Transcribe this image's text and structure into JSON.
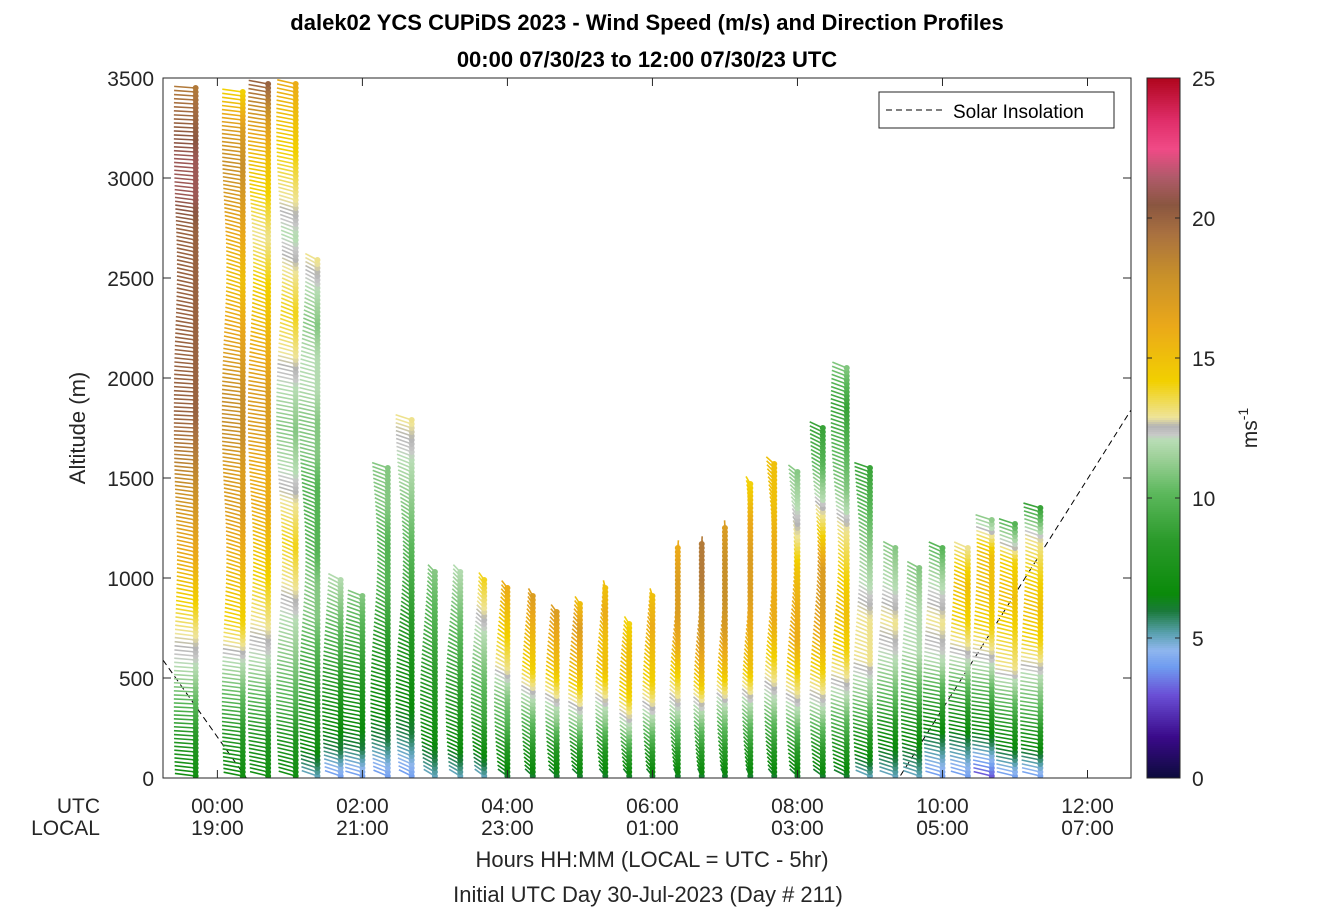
{
  "chart_data": {
    "type": "scatter",
    "title": "dalek02 YCS CUPiDS 2023 - Wind Speed (m/s) and Direction Profiles",
    "subtitle": "00:00 07/30/23 to 12:00 07/30/23  UTC",
    "ylabel": "Altitude (m)",
    "xlabel": "Hours HH:MM  (LOCAL = UTC - 5hr)",
    "xlabel2": "Initial UTC Day 30-Jul-2023 (Day # 211)",
    "ylim": [
      0,
      3500
    ],
    "yticks": [
      0,
      500,
      1000,
      1500,
      2000,
      2500,
      3000,
      3500
    ],
    "xlim_hours": [
      -0.75,
      12.6
    ],
    "xticks_hours": [
      0,
      2,
      4,
      6,
      8,
      10,
      12
    ],
    "xrow_labels": [
      "UTC",
      "LOCAL"
    ],
    "xtick_utc": [
      "00:00",
      "02:00",
      "04:00",
      "06:00",
      "08:00",
      "10:00",
      "12:00"
    ],
    "xtick_local": [
      "19:00",
      "21:00",
      "23:00",
      "01:00",
      "03:00",
      "05:00",
      "07:00"
    ],
    "colorbar": {
      "label": "ms",
      "label_sup": "-1",
      "range": [
        0,
        25
      ],
      "ticks": [
        0,
        5,
        10,
        15,
        20,
        25
      ],
      "stops": [
        [
          0,
          "#0b0b3a"
        ],
        [
          1.5,
          "#3a0a8a"
        ],
        [
          3,
          "#6a4fd6"
        ],
        [
          4,
          "#6f9cf0"
        ],
        [
          4.6,
          "#8fb6ee"
        ],
        [
          5.2,
          "#5aa1b0"
        ],
        [
          6,
          "#1a7a3a"
        ],
        [
          6.6,
          "#0a8a0a"
        ],
        [
          8.5,
          "#2a9a2a"
        ],
        [
          10.2,
          "#5cb85c"
        ],
        [
          11.5,
          "#9fd19a"
        ],
        [
          12.1,
          "#b8ddb5"
        ],
        [
          12.3,
          "#c8c8c8"
        ],
        [
          12.6,
          "#b4b4b4"
        ],
        [
          12.9,
          "#eee49a"
        ],
        [
          14.2,
          "#f2d000"
        ],
        [
          16.2,
          "#eaa81a"
        ],
        [
          18,
          "#c8902a"
        ],
        [
          19.5,
          "#a87040"
        ],
        [
          20.5,
          "#8a5640"
        ],
        [
          21.5,
          "#b05a6a"
        ],
        [
          22.5,
          "#f04a86"
        ],
        [
          23.5,
          "#e02e6a"
        ],
        [
          25,
          "#b0061e"
        ]
      ]
    },
    "legend": {
      "label": "Solar Insolation",
      "placement": "top-right",
      "style": "dashed"
    },
    "solar_insolation_line": {
      "x_hours": [
        -0.75,
        0.4,
        9.4,
        12.6
      ],
      "y": [
        590,
        0,
        0,
        1840
      ]
    },
    "profiles": [
      {
        "t": -0.3,
        "base": 0,
        "top": 3460,
        "speeds": [
          7,
          8,
          10,
          12,
          13,
          14.5,
          16,
          17,
          18,
          19,
          20,
          20,
          20,
          20,
          20,
          20,
          21,
          21,
          20,
          19
        ],
        "dir": 250
      },
      {
        "t": 0.35,
        "base": 0,
        "top": 3440,
        "speeds": [
          7,
          8,
          10,
          12,
          14,
          15,
          16,
          17,
          17,
          18,
          18,
          17,
          16,
          15,
          16,
          17,
          18,
          17,
          14
        ],
        "dir": 240
      },
      {
        "t": 0.7,
        "base": 0,
        "top": 3470,
        "speeds": [
          7,
          8,
          10,
          12,
          13,
          14,
          15,
          16,
          16,
          17,
          17,
          16,
          15,
          14,
          13,
          14,
          15,
          17,
          20
        ],
        "dir": 235
      },
      {
        "t": 1.08,
        "base": 0,
        "top": 3480,
        "speeds": [
          7,
          8,
          10,
          11,
          12,
          13,
          14,
          13,
          12,
          11,
          12,
          13,
          14,
          13,
          12,
          13,
          14,
          15,
          16
        ],
        "dir": 230
      },
      {
        "t": 1.38,
        "base": 0,
        "top": 2590,
        "speeds": [
          5,
          7,
          8,
          9,
          10,
          11,
          11,
          10,
          10,
          10,
          11,
          11,
          12,
          12,
          11,
          12,
          13
        ],
        "dir": 225
      },
      {
        "t": 1.7,
        "base": 0,
        "top": 1000,
        "speeds": [
          4,
          6,
          7,
          8,
          9,
          10,
          11,
          12
        ],
        "dir": 225
      },
      {
        "t": 2.0,
        "base": 0,
        "top": 920,
        "speeds": [
          4,
          6,
          7,
          8,
          9,
          10,
          11
        ],
        "dir": 230
      },
      {
        "t": 2.35,
        "base": 0,
        "top": 1560,
        "speeds": [
          4,
          6,
          7,
          8,
          9,
          10,
          10,
          11,
          11
        ],
        "dir": 220
      },
      {
        "t": 2.68,
        "base": 0,
        "top": 1790,
        "speeds": [
          4,
          6,
          7,
          8,
          9,
          10,
          11,
          12,
          13
        ],
        "dir": 215
      },
      {
        "t": 3.0,
        "base": 0,
        "top": 1030,
        "speeds": [
          5,
          7,
          8,
          9,
          10,
          11
        ],
        "dir": 210
      },
      {
        "t": 3.35,
        "base": 0,
        "top": 1040,
        "speeds": [
          5,
          7,
          8,
          9,
          10,
          11,
          12
        ],
        "dir": 210
      },
      {
        "t": 3.68,
        "base": 0,
        "top": 1000,
        "speeds": [
          5,
          7,
          9,
          10,
          11,
          12,
          13,
          14
        ],
        "dir": 205
      },
      {
        "t": 4.0,
        "base": 0,
        "top": 950,
        "speeds": [
          6,
          8,
          10,
          11,
          13,
          14,
          15,
          16
        ],
        "dir": 205
      },
      {
        "t": 4.35,
        "base": 0,
        "top": 920,
        "speeds": [
          6,
          8,
          10,
          12,
          14,
          15,
          16,
          17
        ],
        "dir": 200
      },
      {
        "t": 4.68,
        "base": 0,
        "top": 830,
        "speeds": [
          6,
          8,
          11,
          13,
          15,
          16,
          17
        ],
        "dir": 200
      },
      {
        "t": 5.0,
        "base": 0,
        "top": 880,
        "speeds": [
          6,
          8,
          11,
          13,
          15,
          16,
          17,
          15
        ],
        "dir": 200
      },
      {
        "t": 5.35,
        "base": 0,
        "top": 960,
        "speeds": [
          6,
          8,
          11,
          13,
          15,
          15,
          16,
          15
        ],
        "dir": 195
      },
      {
        "t": 5.68,
        "base": 0,
        "top": 780,
        "speeds": [
          6,
          9,
          12,
          14,
          15,
          15,
          14
        ],
        "dir": 195
      },
      {
        "t": 6.0,
        "base": 0,
        "top": 920,
        "speeds": [
          6,
          9,
          12,
          14,
          15,
          16,
          15
        ],
        "dir": 195
      },
      {
        "t": 6.35,
        "base": 0,
        "top": 1160,
        "speeds": [
          6,
          9,
          12,
          14,
          16,
          17,
          17,
          16
        ],
        "dir": 190
      },
      {
        "t": 6.68,
        "base": 0,
        "top": 1170,
        "speeds": [
          6,
          9,
          12,
          15,
          17,
          18,
          19,
          19
        ],
        "dir": 190
      },
      {
        "t": 7.0,
        "base": 0,
        "top": 1260,
        "speeds": [
          6,
          9,
          12,
          15,
          17,
          18,
          18,
          17
        ],
        "dir": 190
      },
      {
        "t": 7.35,
        "base": 0,
        "top": 1480,
        "speeds": [
          6,
          9,
          12,
          15,
          16,
          17,
          17,
          16,
          14
        ],
        "dir": 190
      },
      {
        "t": 7.68,
        "base": 0,
        "top": 1570,
        "speeds": [
          6,
          9,
          12,
          14,
          16,
          16,
          16,
          15,
          15
        ],
        "dir": 195
      },
      {
        "t": 8.0,
        "base": 0,
        "top": 1540,
        "speeds": [
          6,
          9,
          12,
          14,
          16,
          16,
          15,
          13,
          12,
          11
        ],
        "dir": 200
      },
      {
        "t": 8.35,
        "base": 0,
        "top": 1750,
        "speeds": [
          6,
          9,
          12,
          14,
          16,
          17,
          17,
          14,
          12,
          10,
          9
        ],
        "dir": 205
      },
      {
        "t": 8.68,
        "base": 0,
        "top": 2060,
        "speeds": [
          6,
          9,
          12,
          14,
          15,
          14,
          13,
          11,
          10,
          9,
          11
        ],
        "dir": 215
      },
      {
        "t": 9.0,
        "base": 0,
        "top": 1560,
        "speeds": [
          5,
          8,
          11,
          13,
          13,
          12,
          11,
          10,
          9
        ],
        "dir": 220
      },
      {
        "t": 9.35,
        "base": 0,
        "top": 1160,
        "speeds": [
          5,
          7,
          10,
          12,
          13,
          12,
          11
        ],
        "dir": 225
      },
      {
        "t": 9.68,
        "base": 0,
        "top": 1050,
        "speeds": [
          5,
          7,
          10,
          12,
          12,
          11
        ],
        "dir": 225
      },
      {
        "t": 10.0,
        "base": 0,
        "top": 1160,
        "speeds": [
          4,
          6,
          9,
          12,
          13,
          12,
          10
        ],
        "dir": 230
      },
      {
        "t": 10.35,
        "base": 0,
        "top": 1150,
        "speeds": [
          4,
          6,
          9,
          12,
          14,
          15,
          13
        ],
        "dir": 230
      },
      {
        "t": 10.68,
        "base": 0,
        "top": 1300,
        "speeds": [
          3,
          6,
          9,
          12,
          14,
          15,
          15,
          11
        ],
        "dir": 235
      },
      {
        "t": 11.0,
        "base": 0,
        "top": 1270,
        "speeds": [
          4,
          7,
          10,
          13,
          14,
          15,
          14,
          10
        ],
        "dir": 235
      },
      {
        "t": 11.35,
        "base": 0,
        "top": 1350,
        "speeds": [
          4,
          7,
          10,
          12,
          14,
          15,
          14,
          13,
          9
        ],
        "dir": 235
      }
    ]
  }
}
